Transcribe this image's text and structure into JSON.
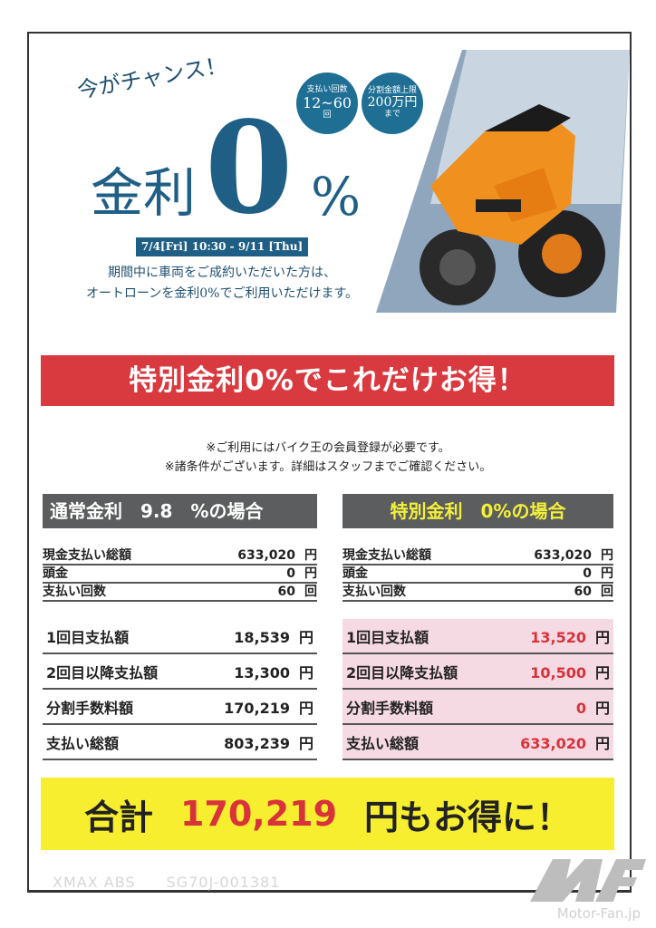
{
  "hero": {
    "catch": "今がチャンス！",
    "kinri": "金利",
    "zero": "0",
    "percent": "%",
    "period": "7/4[Fri] 10:30 - 9/11 [Thu]",
    "desc1": "期間中に車両をご成約いただいた方は、",
    "desc2": "オートローンを金利0%でご利用いただけます。",
    "badges": [
      {
        "small": "支払い回数",
        "big": "12~60",
        "sub": "回"
      },
      {
        "small": "分割金額上限",
        "big": "200万円",
        "sub": "まで"
      }
    ]
  },
  "banner": "特別金利0%でこれだけお得！",
  "notes": [
    "※ご利用にはバイク王の会員登録が必要です。",
    "※諸条件がございます。詳細はスタッフまでご確認ください。"
  ],
  "normal": {
    "title": "通常金利　9.8　%の場合",
    "small_rows": [
      {
        "label": "現金支払い総額",
        "value": "633,020",
        "unit": "円"
      },
      {
        "label": "頭金",
        "value": "0",
        "unit": "円"
      },
      {
        "label": "支払い回数",
        "value": "60",
        "unit": "回"
      }
    ],
    "big_rows": [
      {
        "label": "1回目支払額",
        "value": "18,539",
        "unit": "円"
      },
      {
        "label": "2回目以降支払額",
        "value": "13,300",
        "unit": "円"
      },
      {
        "label": "分割手数料額",
        "value": "170,219",
        "unit": "円"
      },
      {
        "label": "支払い総額",
        "value": "803,239",
        "unit": "円"
      }
    ]
  },
  "special": {
    "title": "特別金利　0%の場合",
    "small_rows": [
      {
        "label": "現金支払い総額",
        "value": "633,020",
        "unit": "円"
      },
      {
        "label": "頭金",
        "value": "0",
        "unit": "円"
      },
      {
        "label": "支払い回数",
        "value": "60",
        "unit": "回"
      }
    ],
    "big_rows": [
      {
        "label": "1回目支払額",
        "value": "13,520",
        "unit": "円"
      },
      {
        "label": "2回目以降支払額",
        "value": "10,500",
        "unit": "円"
      },
      {
        "label": "分割手数料額",
        "value": "0",
        "unit": "円"
      },
      {
        "label": "支払い総額",
        "value": "633,020",
        "unit": "円"
      }
    ]
  },
  "total": {
    "prefix": "合計",
    "amount": "170,219",
    "suffix": "円もお得に！"
  },
  "watermark": "XMAX ABS　　SG70J-001381",
  "logo_text": "Motor-Fan.jp",
  "colors": {
    "brand_blue": "#1f5f86",
    "red": "#d83a3f",
    "yellow": "#f7ee2f",
    "pink": "#f5d9e3",
    "header_gray": "#5b5d5e"
  }
}
